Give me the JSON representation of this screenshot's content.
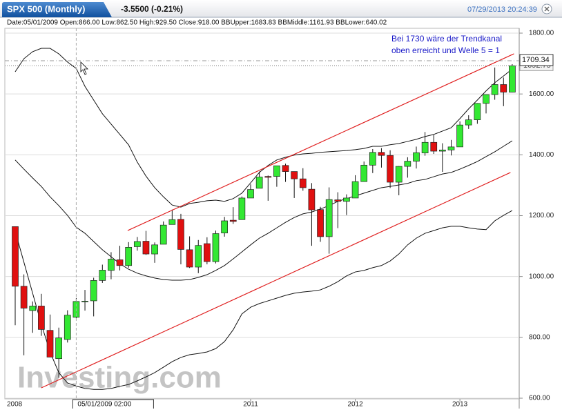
{
  "header": {
    "title": "SPX 500 (Monthly)",
    "change": "-3.5500 (-0.21%)",
    "timestamp": "07/29/2013 20:24:39"
  },
  "chart_data": {
    "type": "candlestick",
    "info": "Date:05/01/2009 Open:866.00 Low:862.50 High:929.50 Close:918.00 BBUpper:1683.83 BBMiddle:1161.93 BBLower:640.02",
    "annotation": [
      "Bei 1730 wäre der Trendkanal",
      "oben erreicht und Welle 5 = 1"
    ],
    "watermark": "Investing.com",
    "x_start_label": "2008",
    "categories": [
      null,
      null,
      null,
      null,
      null,
      null,
      null,
      null,
      null,
      null,
      null,
      null,
      null,
      null,
      null,
      null,
      null,
      null,
      null,
      null,
      null,
      null,
      null,
      null,
      null,
      null,
      null,
      "2011",
      null,
      null,
      null,
      null,
      null,
      null,
      null,
      null,
      null,
      null,
      null,
      "2012",
      null,
      null,
      null,
      null,
      null,
      null,
      null,
      null,
      null,
      null,
      null,
      "2013",
      null,
      null,
      null,
      null,
      null,
      null
    ],
    "ohlc": {
      "up_color": "#33e833",
      "down_color": "#e01010",
      "open": [
        1164,
        968,
        888,
        903,
        823,
        730,
        793,
        866,
        919,
        920,
        987,
        1020,
        1055,
        1036,
        1098,
        1116,
        1074,
        1106,
        1171,
        1188,
        1088,
        1031,
        1108,
        1049,
        1143,
        1185,
        1187,
        1258,
        1290,
        1329,
        1329,
        1365,
        1345,
        1321,
        1287,
        1220,
        1131,
        1252,
        1247,
        1258,
        1312,
        1366,
        1408,
        1398,
        1310,
        1362,
        1379,
        1406,
        1441,
        1412,
        1416,
        1426,
        1498,
        1515,
        1569,
        1598,
        1631,
        1606
      ],
      "high": [
        1164,
        1007,
        918,
        943,
        875,
        832,
        889,
        929.5,
        956,
        996,
        1039,
        1080,
        1101,
        1113,
        1130,
        1150,
        1112,
        1181,
        1220,
        1206,
        1132,
        1120,
        1129,
        1151,
        1196,
        1228,
        1263,
        1303,
        1345,
        1332,
        1364,
        1371,
        1345,
        1356,
        1307,
        1229,
        1293,
        1277,
        1270,
        1333,
        1378,
        1419,
        1422,
        1415,
        1363,
        1392,
        1427,
        1475,
        1465,
        1438,
        1449,
        1510,
        1530,
        1570,
        1598,
        1687,
        1654,
        1698
      ],
      "low": [
        840,
        741,
        815,
        805,
        735,
        667,
        783,
        862.5,
        888,
        869,
        979,
        991,
        1020,
        1029,
        1085,
        1071,
        1045,
        1106,
        1171,
        1040,
        1028,
        1011,
        1040,
        1043,
        1131,
        1173,
        1187,
        1258,
        1290,
        1249,
        1295,
        1311,
        1258,
        1282,
        1101,
        1114,
        1075,
        1159,
        1202,
        1258,
        1312,
        1340,
        1358,
        1291,
        1267,
        1325,
        1355,
        1397,
        1403,
        1344,
        1398,
        1426,
        1485,
        1502,
        1536,
        1581,
        1560,
        1605
      ],
      "close": [
        968,
        896,
        903,
        826,
        735,
        798,
        873,
        918,
        919,
        987,
        1021,
        1057,
        1036,
        1096,
        1115,
        1074,
        1104,
        1169,
        1187,
        1089,
        1031,
        1102,
        1049,
        1141,
        1183,
        1181,
        1258,
        1286,
        1327,
        1326,
        1364,
        1345,
        1321,
        1292,
        1219,
        1131,
        1253,
        1247,
        1258,
        1312,
        1366,
        1408,
        1398,
        1310,
        1362,
        1379,
        1407,
        1441,
        1412,
        1416,
        1426,
        1498,
        1515,
        1569,
        1598,
        1631,
        1606,
        1692.75
      ]
    },
    "bollinger": {
      "color": "#111111",
      "upper": [
        1673,
        1716,
        1739,
        1750,
        1750,
        1732,
        1705,
        1683.83,
        1625,
        1580,
        1535,
        1501,
        1467,
        1433,
        1376,
        1330,
        1292,
        1262,
        1235,
        1228,
        1240,
        1244,
        1249,
        1251,
        1247,
        1256,
        1274,
        1308,
        1342,
        1365,
        1383,
        1392,
        1399,
        1403,
        1405,
        1408,
        1410,
        1412,
        1414,
        1417,
        1421,
        1428,
        1428,
        1433,
        1437,
        1444,
        1451,
        1460,
        1467,
        1478,
        1489,
        1519,
        1551,
        1580,
        1610,
        1637,
        1659,
        1682
      ],
      "middle": [
        1383,
        1353,
        1324,
        1296,
        1262,
        1233,
        1201,
        1161.93,
        1142,
        1115,
        1088,
        1065,
        1042,
        1024,
        1011,
        1002,
        995,
        990,
        988,
        988,
        990,
        997,
        1006,
        1020,
        1036,
        1058,
        1081,
        1104,
        1126,
        1142,
        1160,
        1178,
        1194,
        1206,
        1212,
        1222,
        1233,
        1247,
        1256,
        1265,
        1274,
        1283,
        1292,
        1296,
        1301,
        1306,
        1315,
        1319,
        1328,
        1337,
        1342,
        1353,
        1365,
        1378,
        1394,
        1410,
        1428,
        1446
      ],
      "lower": [
        1149,
        1047,
        945,
        843,
        752,
        684,
        650,
        640.02,
        632,
        629,
        629,
        632,
        639,
        645,
        657,
        670,
        684,
        702,
        720,
        734,
        743,
        747,
        752,
        763,
        786,
        825,
        877,
        899,
        911,
        920,
        929,
        938,
        945,
        949,
        952,
        956,
        968,
        983,
        1002,
        1015,
        1020,
        1029,
        1036,
        1051,
        1074,
        1104,
        1126,
        1142,
        1151,
        1160,
        1165,
        1165,
        1160,
        1156,
        1154,
        1183,
        1201,
        1217
      ]
    },
    "trendlines": [
      {
        "color": "#e02020",
        "start": [
          12.9,
          1151
        ],
        "end": [
          57.2,
          1732
        ]
      },
      {
        "color": "#e02020",
        "start": [
          3.0,
          634
        ],
        "end": [
          56.8,
          1342
        ]
      }
    ],
    "crosshair": {
      "index": 7,
      "value": 1709.34,
      "date_label": "05/01/2009 02:00"
    },
    "ylim": [
      600,
      1800
    ],
    "yticks": [
      {
        "value": 600,
        "label": "600.00"
      },
      {
        "value": 800,
        "label": "800.00"
      },
      {
        "value": 1000,
        "label": "1000.00"
      },
      {
        "value": 1200,
        "label": "1200.00"
      },
      {
        "value": 1400,
        "label": "1400.00"
      },
      {
        "value": 1600,
        "label": "1600.00"
      },
      {
        "value": 1800,
        "label": "1800.00"
      }
    ],
    "grid": true
  }
}
